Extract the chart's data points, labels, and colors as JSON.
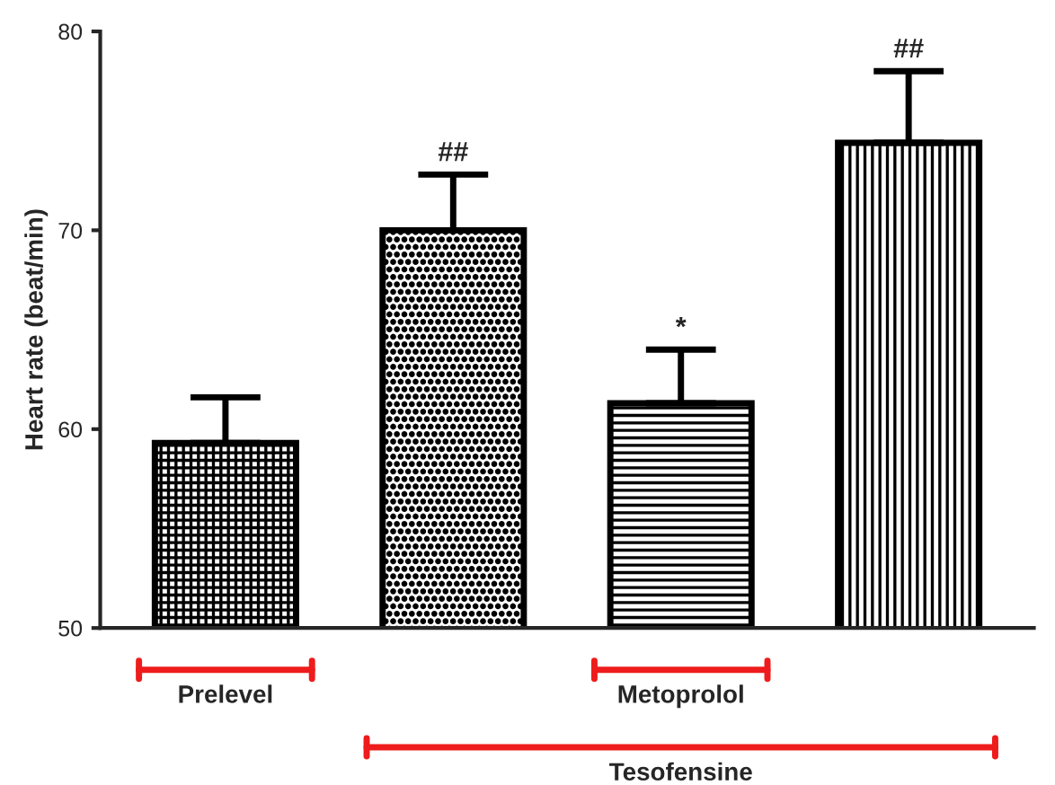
{
  "chart_data": {
    "type": "bar",
    "ylabel": "Heart rate (beat/min)",
    "categories": [
      null,
      null,
      null,
      null
    ],
    "values": [
      59.3,
      70.0,
      61.3,
      74.4
    ],
    "errors": [
      [
        59.3,
        61.6
      ],
      [
        70.0,
        72.8
      ],
      [
        61.3,
        64.0
      ],
      [
        74.4,
        78.0
      ]
    ],
    "colors": [
      "#000000",
      "#000000",
      "#000000",
      "#000000"
    ],
    "ylim": [
      50,
      80
    ],
    "yticks": [
      50,
      60,
      70,
      80
    ],
    "grid": false,
    "annotations": [
      "##",
      "*",
      "##",
      "Prelevel",
      "Metoprolol",
      "Tesofensine"
    ]
  }
}
